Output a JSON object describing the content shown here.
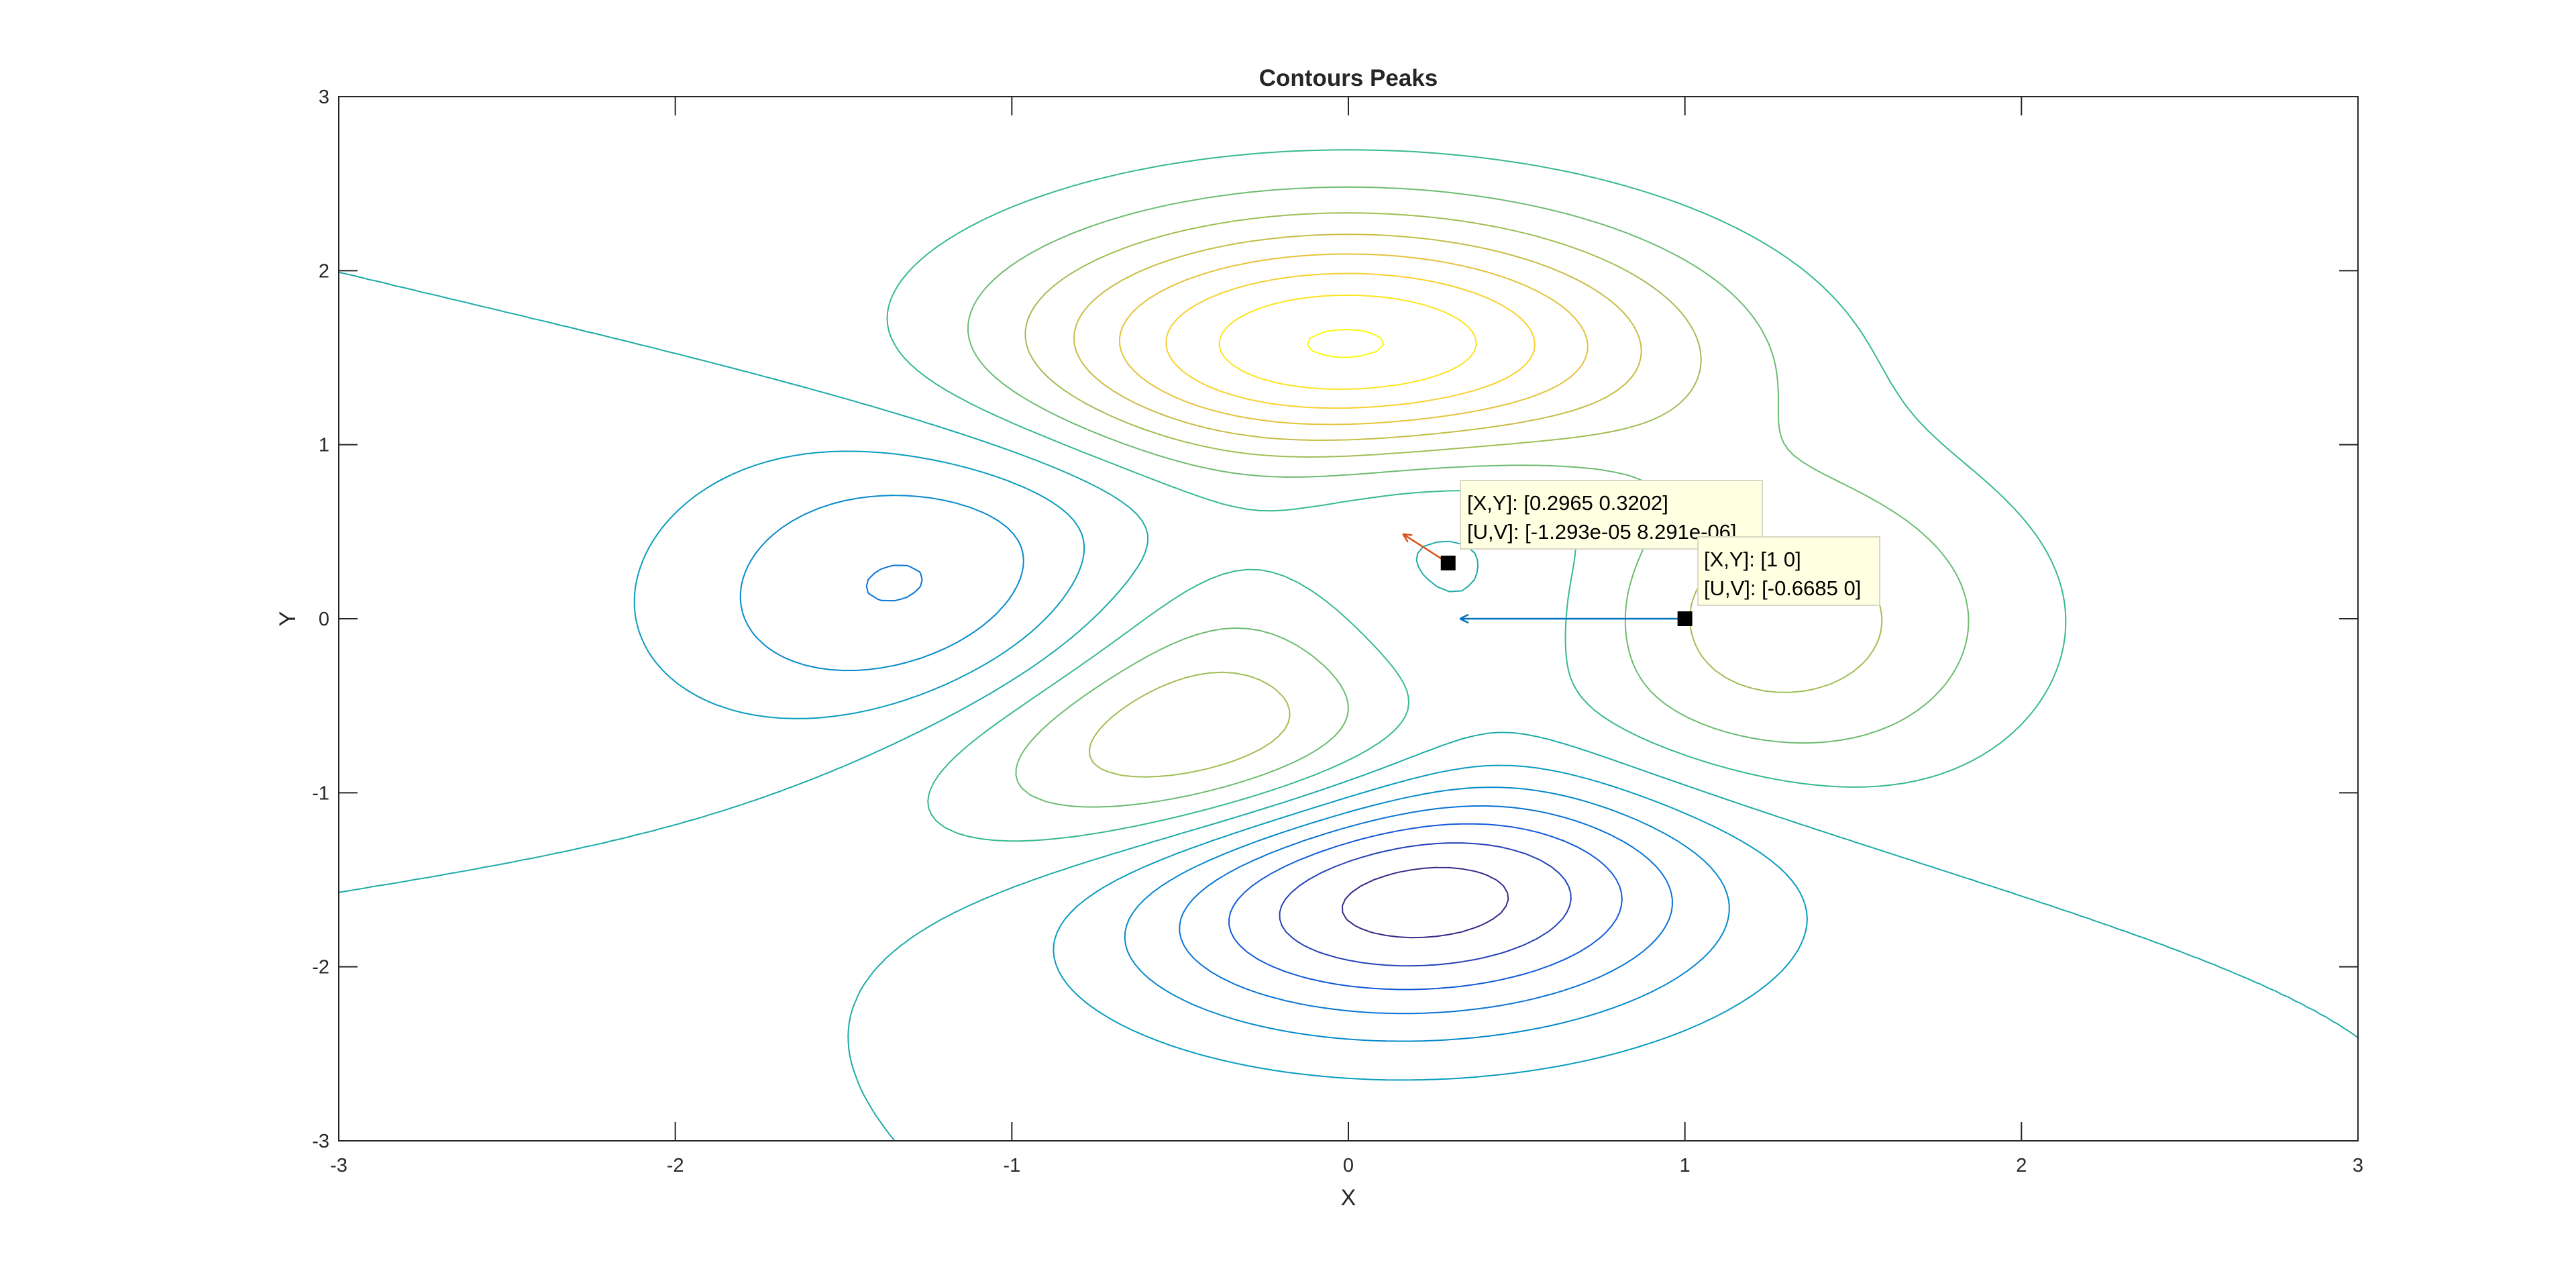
{
  "chart_data": {
    "type": "contour",
    "title": "Contours Peaks",
    "xlabel": "X",
    "ylabel": "Y",
    "xlim": [
      -3,
      3
    ],
    "ylim": [
      -3,
      3
    ],
    "xticks": [
      -3,
      -2,
      -1,
      0,
      1,
      2,
      3
    ],
    "yticks": [
      -3,
      -2,
      -1,
      0,
      1,
      2,
      3
    ],
    "xtick_labels": [
      "-3",
      "-2",
      "-1",
      "0",
      "1",
      "2",
      "3"
    ],
    "ytick_labels": [
      "-3",
      "-2",
      "-1",
      "0",
      "1",
      "2",
      "3"
    ],
    "function": "peaks",
    "levels": [
      -6,
      -5,
      -4,
      -3,
      -2,
      -1,
      0,
      1,
      2,
      3,
      4,
      5,
      6,
      7,
      8
    ],
    "colormap": "parula",
    "grid": false,
    "vectors": [
      {
        "x": 0.2965,
        "y": 0.3202,
        "u": -1.293e-05,
        "v": 8.291e-06,
        "color": "#d95319"
      },
      {
        "x": 1,
        "y": 0,
        "u": -0.6685,
        "v": 0,
        "color": "#0072bd"
      }
    ],
    "datatips": [
      {
        "x": 0.2965,
        "y": 0.3202,
        "line1": "[X,Y]: [0.2965 0.3202]",
        "line2": "[U,V]: [-1.293e-05 8.291e-06]"
      },
      {
        "x": 1,
        "y": 0,
        "line1": "[X,Y]: [1 0]",
        "line2": "[U,V]: [-0.6685 0]"
      }
    ]
  }
}
